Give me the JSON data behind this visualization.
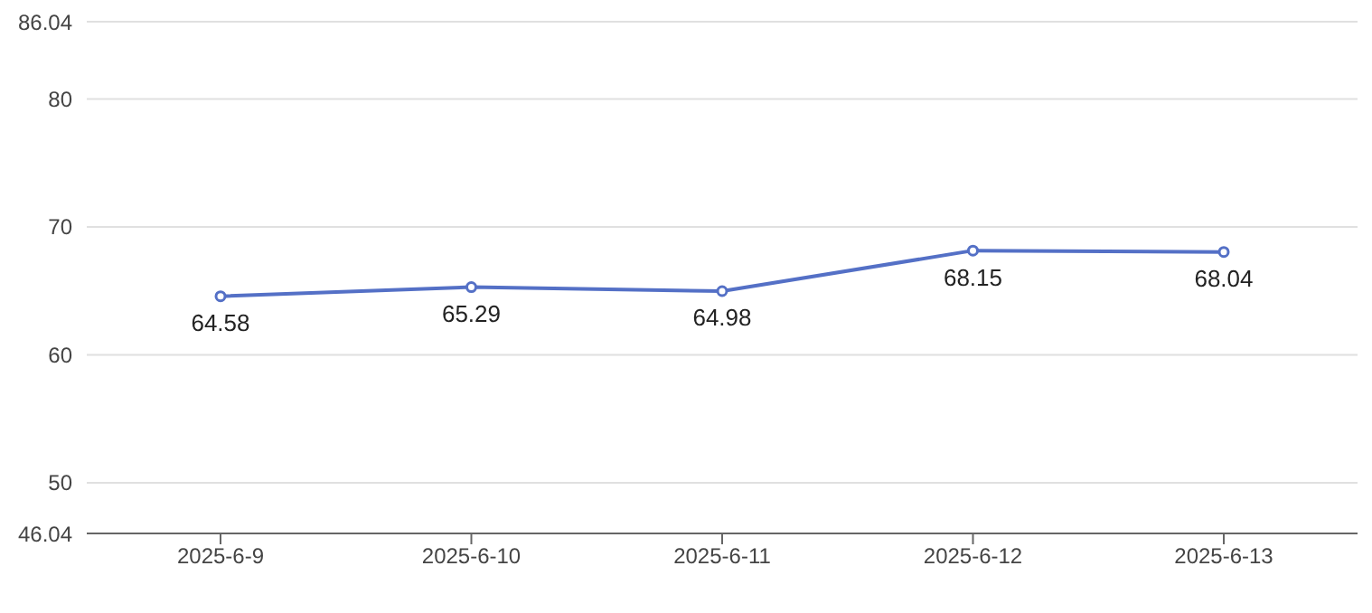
{
  "chart_data": {
    "type": "line",
    "categories": [
      "2025-6-9",
      "2025-6-10",
      "2025-6-11",
      "2025-6-12",
      "2025-6-13"
    ],
    "series": [
      {
        "color": "#5470c6",
        "values": [
          64.58,
          65.29,
          64.98,
          68.15,
          68.04
        ]
      }
    ],
    "ylim": [
      46.04,
      86.04
    ],
    "yticks": [
      46.04,
      50,
      60,
      70,
      80,
      86.04
    ],
    "grid": "y",
    "data_labels": true,
    "marker": "circle"
  }
}
